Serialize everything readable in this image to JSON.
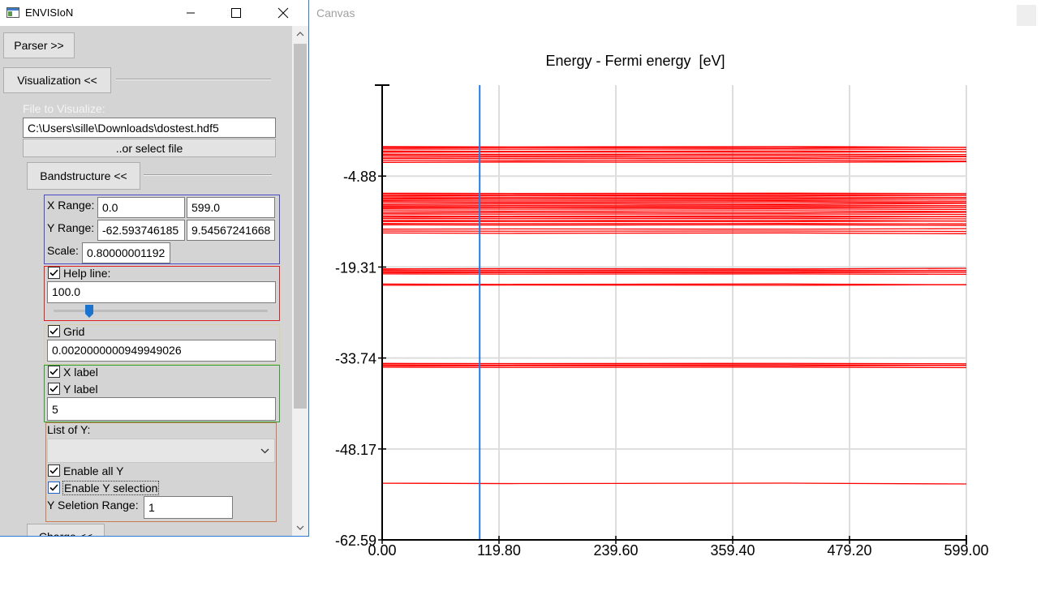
{
  "window": {
    "title": "ENVISIoN"
  },
  "panel": {
    "parser_label": "Parser >>",
    "visualization_label": "Visualization <<",
    "file_label": "File to Visualize:",
    "file_path": "C:\\Users\\sille\\Downloads\\dostest.hdf5",
    "select_file_label": "..or select file",
    "bandstructure_label": "Bandstructure <<",
    "x_range_label": "X Range:",
    "x_min": "0.0",
    "x_max": "599.0",
    "y_range_label": "Y Range:",
    "y_min": "-62.593746185",
    "y_max": "9.54567241668",
    "scale_label": "Scale:",
    "scale_value": "0.80000001192",
    "help_line_label": "Help line:",
    "help_line_checked": true,
    "help_line_value": "100.0",
    "help_line_slider_fraction": 0.167,
    "grid_label": "Grid",
    "grid_checked": true,
    "grid_value": "0.0020000000949949026",
    "x_label_label": "X label",
    "x_label_checked": true,
    "y_label_label": "Y label",
    "y_label_checked": true,
    "label_count": "5",
    "list_of_y_label": "List of Y:",
    "list_of_y_value": "",
    "enable_all_y_label": "Enable all Y",
    "enable_all_y_checked": true,
    "enable_y_selection_label": "Enable Y selection",
    "enable_y_selection_checked": true,
    "y_selection_range_label": "Y Seletion Range:",
    "y_selection_range_value": "1",
    "charge_label": "Charge <<"
  },
  "canvas": {
    "title": "Canvas"
  },
  "chart_data": {
    "type": "line",
    "title": "Energy - Fermi energy  [eV]",
    "xlim": [
      0,
      599
    ],
    "ylim": [
      -62.59,
      9.55
    ],
    "x_ticks": [
      "0.00",
      "119.80",
      "239.60",
      "359.40",
      "479.20",
      "599.00"
    ],
    "x_tick_values": [
      0,
      119.8,
      239.6,
      359.4,
      479.2,
      599
    ],
    "y_ticks": [
      "-4.88",
      "-19.31",
      "-33.74",
      "-48.17",
      "-62.59"
    ],
    "y_tick_values": [
      -4.88,
      -19.31,
      -33.74,
      -48.17,
      -62.59
    ],
    "grid": true,
    "help_line_x": 100.0,
    "series_color": "#ff0000",
    "help_line_color": "#1e7de6",
    "band_energies": [
      -0.2,
      -0.4,
      -0.6,
      -0.9,
      -1.1,
      -1.4,
      -1.6,
      -1.9,
      -2.1,
      -2.4,
      -2.7,
      -7.6,
      -7.8,
      -8.0,
      -8.2,
      -8.4,
      -8.6,
      -8.8,
      -9.0,
      -9.3,
      -9.5,
      -9.7,
      -9.9,
      -10.1,
      -10.4,
      -10.7,
      -10.9,
      -11.2,
      -11.4,
      -11.6,
      -11.9,
      -12.1,
      -12.4,
      -12.6,
      -13.3,
      -13.6,
      -13.9,
      -19.6,
      -19.8,
      -20.0,
      -20.2,
      -20.4,
      -22.0,
      -22.2,
      -34.6,
      -34.8,
      -35.0,
      -35.2,
      -53.6
    ]
  }
}
